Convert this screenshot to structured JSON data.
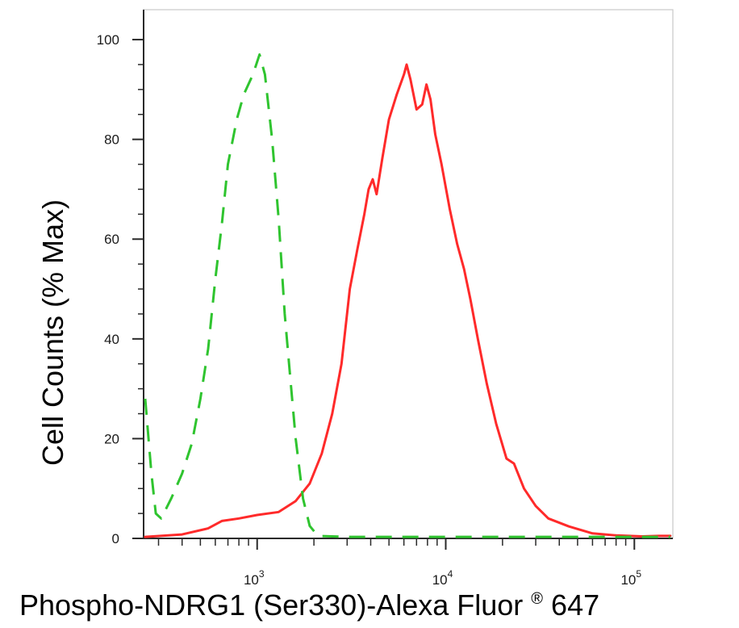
{
  "chart_data": {
    "type": "line",
    "title": "",
    "xlabel": "Phospho-NDRG1 (Ser330)-Alexa Fluor",
    "xlabel_superscript": "®",
    "xlabel_suffix": " 647",
    "ylabel": "Cell Counts (% Max)",
    "x_scale": "log",
    "xlim": [
      250,
      160000
    ],
    "ylim": [
      0,
      106
    ],
    "y_ticks": [
      0,
      20,
      40,
      60,
      80,
      100
    ],
    "x_tick_labels": [
      {
        "value": 1000,
        "base": "10",
        "exp": "3"
      },
      {
        "value": 10000,
        "base": "10",
        "exp": "4"
      },
      {
        "value": 100000,
        "base": "10",
        "exp": "5"
      }
    ],
    "grid": false,
    "series": [
      {
        "style": "solid",
        "color": "#ff2a2a",
        "points": [
          [
            255,
            0.3
          ],
          [
            400,
            0.8
          ],
          [
            550,
            2
          ],
          [
            650,
            3.5
          ],
          [
            800,
            4
          ],
          [
            1000,
            4.7
          ],
          [
            1300,
            5.3
          ],
          [
            1600,
            7.5
          ],
          [
            1900,
            11
          ],
          [
            2200,
            17
          ],
          [
            2500,
            25
          ],
          [
            2800,
            35
          ],
          [
            3100,
            50
          ],
          [
            3400,
            58
          ],
          [
            3700,
            65
          ],
          [
            3900,
            70
          ],
          [
            4100,
            72
          ],
          [
            4300,
            69
          ],
          [
            4600,
            76
          ],
          [
            5000,
            84
          ],
          [
            5500,
            89
          ],
          [
            6000,
            93
          ],
          [
            6200,
            95
          ],
          [
            6500,
            92
          ],
          [
            7000,
            86
          ],
          [
            7500,
            87
          ],
          [
            7900,
            91
          ],
          [
            8300,
            88
          ],
          [
            8800,
            81
          ],
          [
            9500,
            75
          ],
          [
            10500,
            66
          ],
          [
            11500,
            59
          ],
          [
            12500,
            54
          ],
          [
            13500,
            48
          ],
          [
            14800,
            40
          ],
          [
            16500,
            31
          ],
          [
            18500,
            23
          ],
          [
            21000,
            16
          ],
          [
            23000,
            15
          ],
          [
            26000,
            10
          ],
          [
            30000,
            6.5
          ],
          [
            35000,
            4
          ],
          [
            45000,
            2.4
          ],
          [
            60000,
            1
          ],
          [
            80000,
            0.6
          ],
          [
            110000,
            0.4
          ],
          [
            135000,
            0.5
          ],
          [
            155000,
            0.5
          ]
        ]
      },
      {
        "style": "dashed",
        "color": "#2fc42f",
        "points": [
          [
            255,
            28
          ],
          [
            275,
            13
          ],
          [
            290,
            5
          ],
          [
            310,
            4
          ],
          [
            350,
            8
          ],
          [
            400,
            13
          ],
          [
            450,
            19
          ],
          [
            500,
            28
          ],
          [
            550,
            38
          ],
          [
            600,
            52
          ],
          [
            650,
            63
          ],
          [
            700,
            75
          ],
          [
            780,
            84
          ],
          [
            850,
            89
          ],
          [
            950,
            93
          ],
          [
            1030,
            97
          ],
          [
            1100,
            93
          ],
          [
            1200,
            80
          ],
          [
            1300,
            64
          ],
          [
            1400,
            45
          ],
          [
            1500,
            32
          ],
          [
            1600,
            20
          ],
          [
            1750,
            8
          ],
          [
            1900,
            2.5
          ],
          [
            2100,
            0.5
          ],
          [
            3000,
            0.3
          ],
          [
            10000,
            0.3
          ],
          [
            50000,
            0.3
          ],
          [
            155000,
            0.3
          ]
        ]
      }
    ]
  }
}
